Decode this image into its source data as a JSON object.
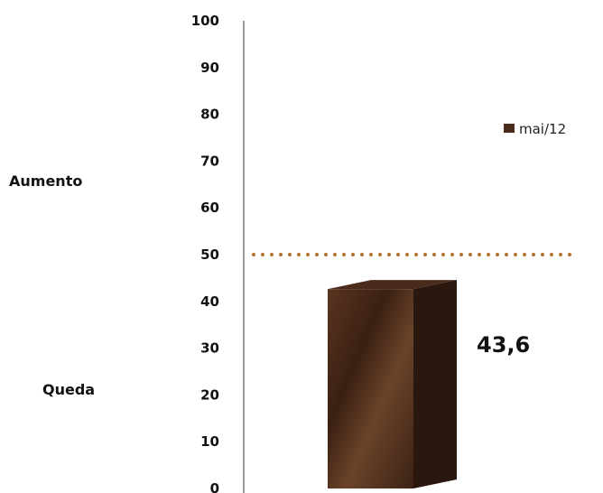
{
  "chart_data": {
    "type": "bar",
    "categories": [
      ""
    ],
    "series": [
      {
        "name": "mai/12",
        "values": [
          43.6
        ]
      }
    ],
    "ylim": [
      0,
      100
    ],
    "yticks": [
      "0",
      "10",
      "20",
      "30",
      "40",
      "50",
      "60",
      "70",
      "80",
      "90",
      "100"
    ],
    "data_label": "43,6",
    "reference_line": {
      "value": 50,
      "style": "dotted"
    },
    "side_labels": {
      "upper": "Aumento",
      "lower": "Queda"
    },
    "legend": {
      "entries": [
        "mai/12"
      ],
      "placement": "right"
    },
    "grid": false,
    "colors": {
      "bar": "#4a2a1a",
      "bar_side": "#2a170e",
      "reference_line": "#b5732e",
      "axis": "#9a9a9a"
    }
  }
}
